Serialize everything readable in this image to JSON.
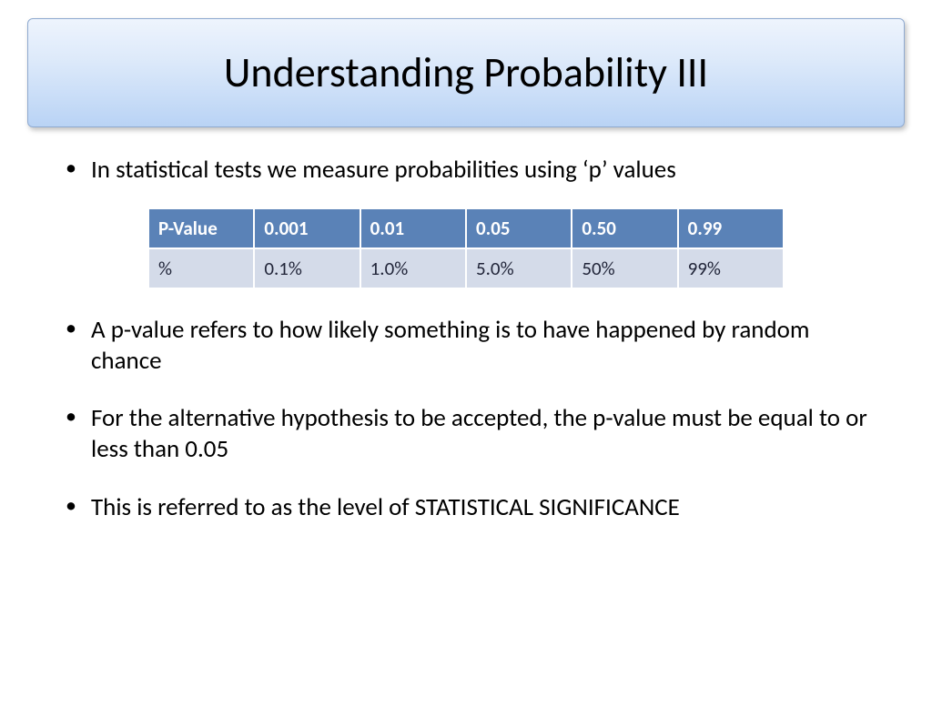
{
  "title": "Understanding Probability III",
  "bullets": {
    "b1": "In statistical tests we measure probabilities using ‘p’ values",
    "b2": "A p-value refers to how likely something is to have happened by random chance",
    "b3": "For the alternative hypothesis to be accepted, the p-value must be equal to or less than 0.05",
    "b4": "This is referred to as the level of STATISTICAL SIGNIFICANCE"
  },
  "table": {
    "header_label": "P-Value",
    "row_label": "%",
    "cols": {
      "c1": {
        "p": "0.001",
        "pct": "0.1%"
      },
      "c2": {
        "p": "0.01",
        "pct": "1.0%"
      },
      "c3": {
        "p": "0.05",
        "pct": "5.0%"
      },
      "c4": {
        "p": "0.50",
        "pct": "50%"
      },
      "c5": {
        "p": "0.99",
        "pct": "99%"
      }
    }
  },
  "style": {
    "title_gradient_top": "#eef4fd",
    "title_gradient_bottom": "#b9d3f5",
    "title_border": "#8faad0",
    "header_bg": "#5a82b7",
    "header_fg": "#ffffff",
    "row_bg": "#d4dbe9",
    "row_fg": "#22263a",
    "page_bg": "#ffffff",
    "title_fontsize": 46,
    "bullet_fontsize": 27,
    "cell_fontsize": 21
  }
}
